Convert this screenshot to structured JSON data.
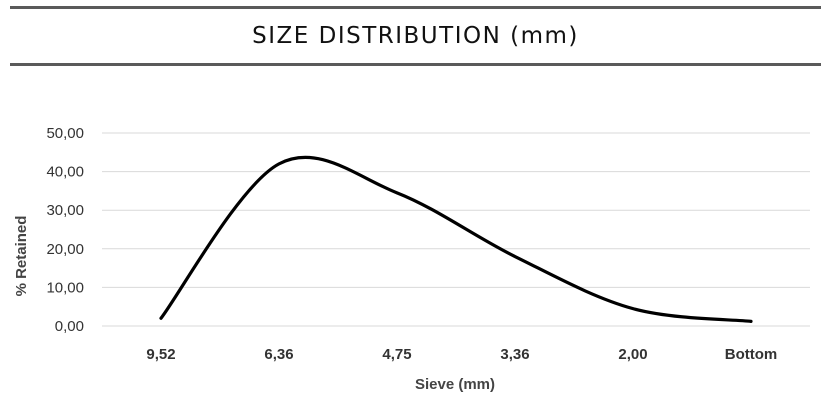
{
  "chart_data": {
    "type": "line",
    "title": "SIZE DISTRIBUTION (mm)",
    "xlabel": "Sieve (mm)",
    "ylabel": "% Retained",
    "categories": [
      "9,52",
      "6,36",
      "4,75",
      "3,36",
      "2,00",
      "Bottom"
    ],
    "series": [
      {
        "values": [
          2.0,
          42.0,
          34.5,
          18.0,
          4.5,
          1.2
        ]
      }
    ],
    "y_ticks": [
      "0,00",
      "10,00",
      "20,00",
      "30,00",
      "40,00",
      "50,00"
    ],
    "ylim": [
      0,
      50
    ],
    "grid": true,
    "smooth": true,
    "line_color": "#000000",
    "grid_color": "#d9d9d9"
  }
}
